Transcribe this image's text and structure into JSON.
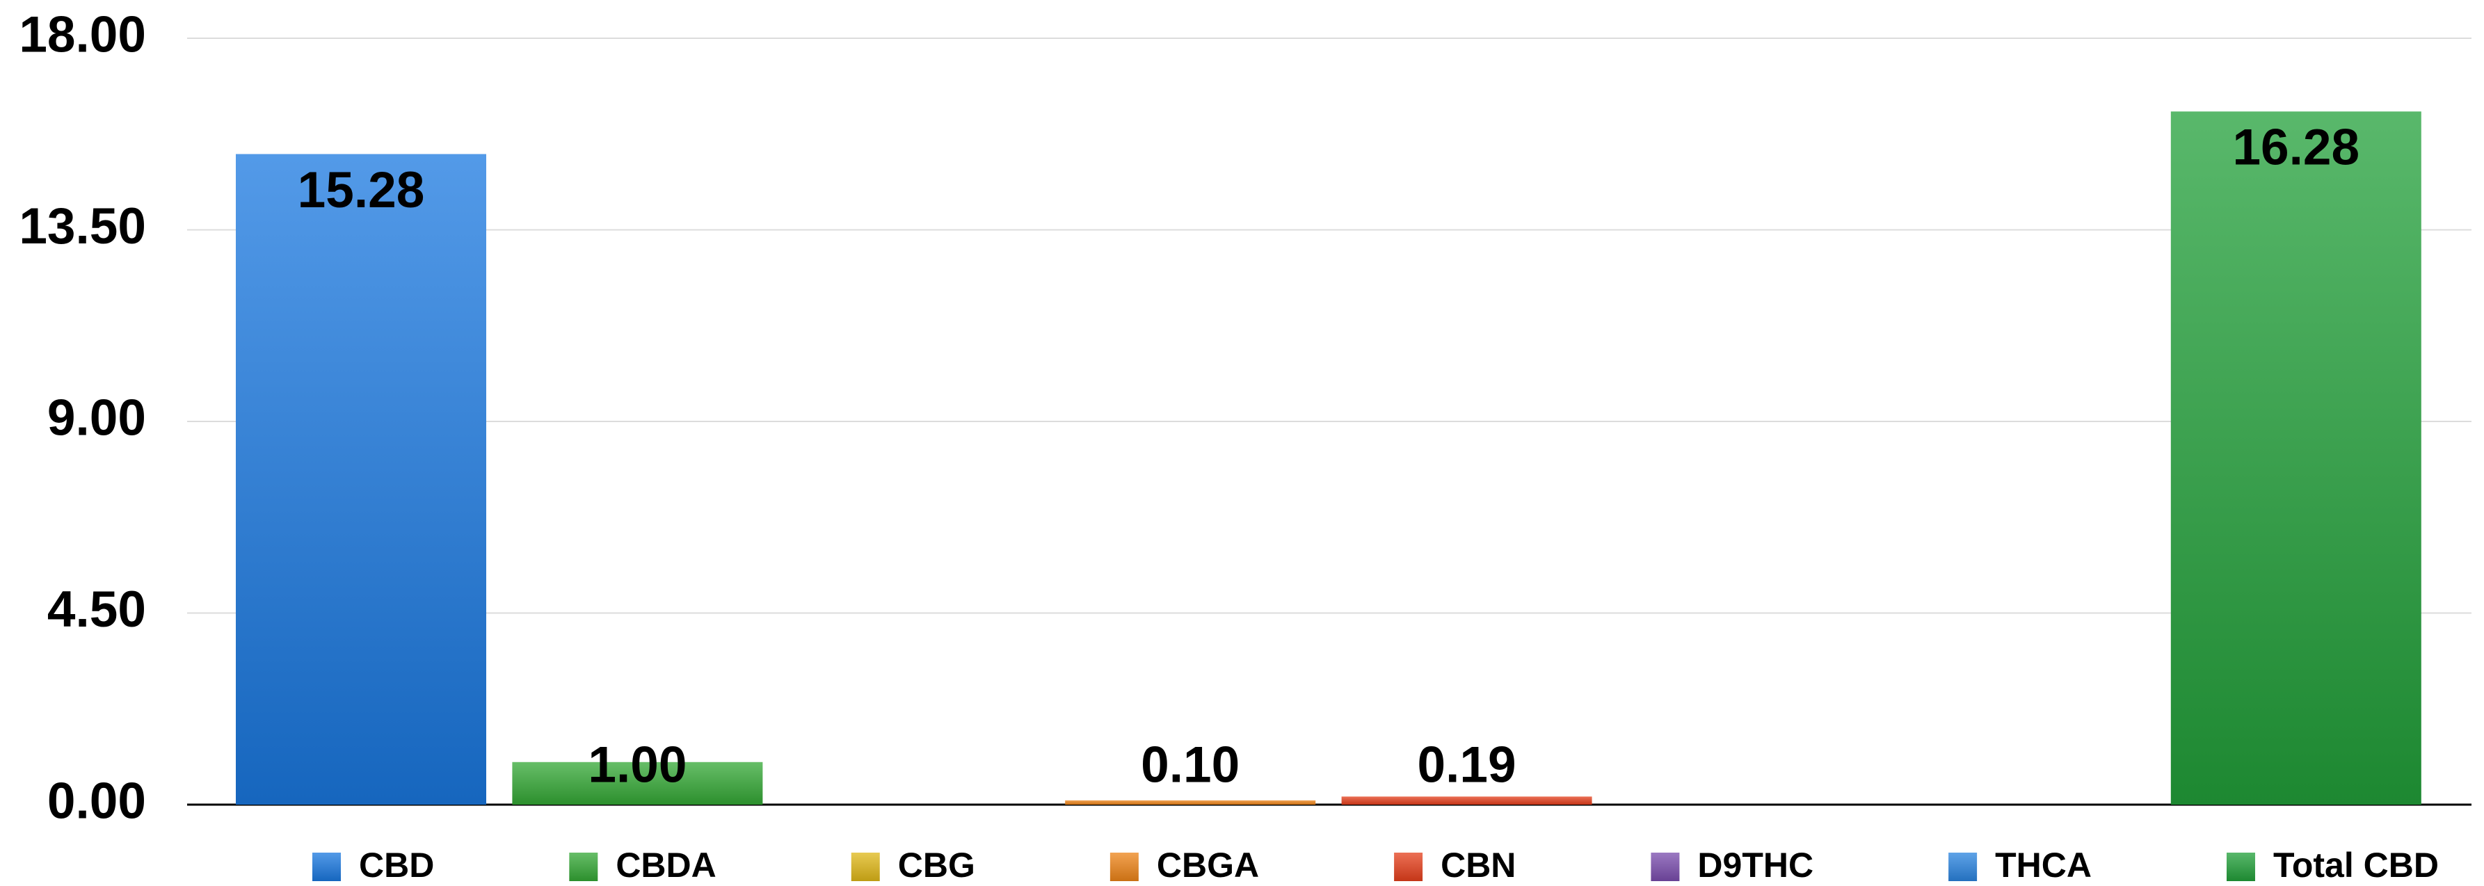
{
  "chart_data": {
    "type": "bar",
    "categories": [
      "CBD",
      "CBDA",
      "CBG",
      "CBGA",
      "CBN",
      "D9THC",
      "THCA",
      "Total CBD"
    ],
    "values": [
      15.28,
      1.0,
      0,
      0.1,
      0.19,
      0,
      0,
      16.28
    ],
    "value_labels": [
      "15.28",
      "1.00",
      null,
      "0.10",
      "0.19",
      null,
      null,
      "16.28"
    ],
    "colors": [
      "#1a78e0",
      "#34a835",
      "#e0b818",
      "#ee8418",
      "#e6401c",
      "#7a4cae",
      "#2a84e0",
      "#22a03a"
    ],
    "ylim": [
      0,
      18
    ],
    "yticks": [
      {
        "value": 0,
        "label": "0.00"
      },
      {
        "value": 4.5,
        "label": "4.50"
      },
      {
        "value": 9,
        "label": "9.00"
      },
      {
        "value": 13.5,
        "label": "13.50"
      },
      {
        "value": 18,
        "label": "18.00"
      }
    ],
    "grid": true,
    "legend": "bottom"
  }
}
